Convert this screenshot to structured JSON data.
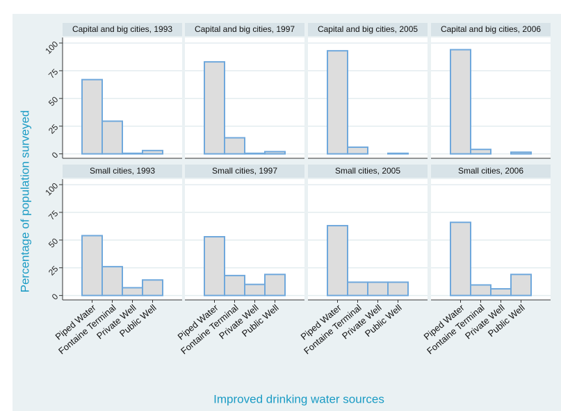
{
  "chart_data": {
    "type": "bar",
    "ylabel": "Percentage of population surveyed",
    "xlabel": "Improved drinking water sources",
    "categories": [
      "Piped Water",
      "Fontaine Terminal",
      "Private Well",
      "Public Well"
    ],
    "color": "#6fa8dc",
    "fill": "#dddddd",
    "grid": true,
    "ylim": [
      -4,
      105
    ],
    "yticks": [
      0,
      25,
      50,
      75,
      100
    ],
    "panels": [
      {
        "title": "Capital and big cities, 1993",
        "values": [
          67,
          29.5,
          0.5,
          3
        ]
      },
      {
        "title": "Capital and big cities, 1997",
        "values": [
          83,
          14.5,
          0.5,
          2
        ]
      },
      {
        "title": "Capital and big cities, 2005",
        "values": [
          93,
          6,
          0,
          0.5
        ]
      },
      {
        "title": "Capital and big cities, 2006",
        "values": [
          94,
          4,
          0,
          1.5
        ]
      },
      {
        "title": "Small cities, 1993",
        "values": [
          54,
          26,
          7,
          14
        ]
      },
      {
        "title": "Small cities, 1997",
        "values": [
          53,
          18,
          10,
          19
        ]
      },
      {
        "title": "Small cities, 2005",
        "values": [
          63,
          12,
          12,
          12
        ]
      },
      {
        "title": "Small cities, 2006",
        "values": [
          66,
          9.5,
          6,
          19
        ]
      }
    ]
  }
}
